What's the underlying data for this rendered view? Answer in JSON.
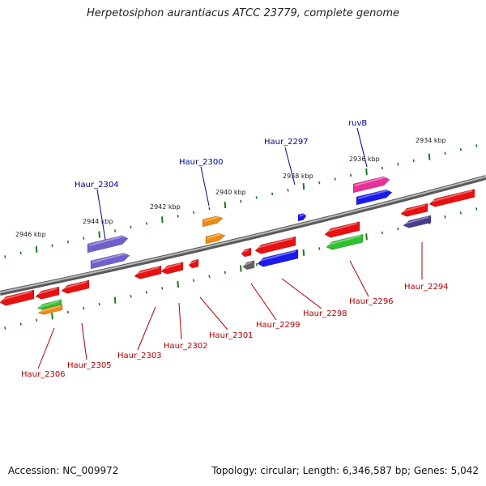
{
  "title": "Herpetosiphon aurantiacus ATCC 23779, complete genome",
  "footer": {
    "accession": "Accession: NC_009972",
    "topology": "Topology: circular; Length: 6,346,587 bp; Genes: 5,042"
  },
  "colors": {
    "label_forward": "#00008b",
    "label_reverse": "#b00000",
    "tick": "#1a7a1a",
    "backbone": "#888888"
  },
  "ticks": [
    {
      "label": "2934 kbp"
    },
    {
      "label": "2936 kbp"
    },
    {
      "label": "2938 kbp"
    },
    {
      "label": "2940 kbp"
    },
    {
      "label": "2942 kbp"
    },
    {
      "label": "2944 kbp"
    },
    {
      "label": "2946 kbp"
    }
  ],
  "forward_labels": [
    {
      "text": "ruvB"
    },
    {
      "text": "Haur_2297"
    },
    {
      "text": "Haur_2300"
    },
    {
      "text": "Haur_2304"
    }
  ],
  "reverse_labels": [
    {
      "text": "Haur_2294"
    },
    {
      "text": "Haur_2296"
    },
    {
      "text": "Haur_2298"
    },
    {
      "text": "Haur_2299"
    },
    {
      "text": "Haur_2301"
    },
    {
      "text": "Haur_2302"
    },
    {
      "text": "Haur_2303"
    },
    {
      "text": "Haur_2305"
    },
    {
      "text": "Haur_2306"
    }
  ],
  "features": [
    {
      "name": "ruvB",
      "color": "#e8309a",
      "strand": "forward"
    },
    {
      "name": "Haur_2297",
      "color": "#1a1aee",
      "strand": "forward"
    },
    {
      "name": "Haur_2300",
      "color": "#f08a10",
      "strand": "forward"
    },
    {
      "name": "Haur_2304",
      "color": "#7060cc",
      "strand": "forward"
    },
    {
      "name": "Haur_2294",
      "color": "#4a3c8c",
      "strand": "reverse"
    },
    {
      "name": "Haur_2296",
      "color": "#30c030",
      "strand": "reverse"
    },
    {
      "name": "Haur_2298",
      "color": "#1a1aee",
      "strand": "reverse"
    },
    {
      "name": "Haur_2299",
      "color": "#606060",
      "strand": "reverse"
    },
    {
      "name": "Haur_2305",
      "color": "#f08a10",
      "strand": "reverse"
    },
    {
      "name": "Haur_2306",
      "color": "#30c030",
      "strand": "reverse"
    },
    {
      "name": "gene",
      "color": "#e81010",
      "strand": "reverse"
    }
  ]
}
